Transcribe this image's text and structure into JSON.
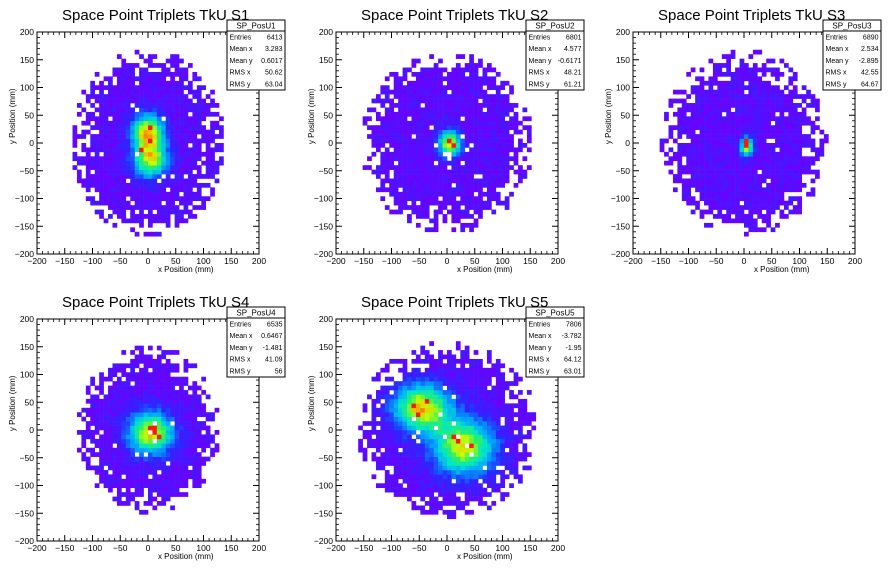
{
  "chart_data": [
    {
      "type": "heatmap",
      "title": "Space Point Triplets TkU S1",
      "xlabel": "x Position (mm)",
      "ylabel": "y Position (mm)",
      "xlim": [
        -200,
        200
      ],
      "ylim": [
        -200,
        200
      ],
      "xticks": [
        -200,
        -150,
        -100,
        -50,
        0,
        50,
        100,
        150,
        200
      ],
      "yticks": [
        -200,
        -150,
        -100,
        -50,
        0,
        50,
        100,
        150,
        200
      ],
      "grid": false,
      "stats": {
        "name": "SP_PosU1",
        "rows": [
          {
            "label": "Entries",
            "value": "6413"
          },
          {
            "label": "Mean x",
            "value": "3.283"
          },
          {
            "label": "Mean y",
            "value": "0.6017"
          },
          {
            "label": "RMS x",
            "value": "50.62"
          },
          {
            "label": "RMS y",
            "value": "63.04"
          }
        ]
      },
      "blobs": [
        {
          "x": 0,
          "y": 20,
          "sx": 20,
          "sy": 22,
          "amp": 1.0
        },
        {
          "x": 5,
          "y": -30,
          "sx": 22,
          "sy": 22,
          "amp": 0.9
        }
      ],
      "extent": {
        "cx": 0,
        "cy": 0,
        "rx": 135,
        "ry": 165
      },
      "hot": [
        [
          0,
          25
        ],
        [
          5,
          5
        ],
        [
          -10,
          -15
        ],
        [
          0,
          30
        ]
      ]
    },
    {
      "type": "heatmap",
      "title": "Space Point Triplets TkU S2",
      "xlabel": "x Position (mm)",
      "ylabel": "y Position (mm)",
      "xlim": [
        -200,
        200
      ],
      "ylim": [
        -200,
        200
      ],
      "xticks": [
        -200,
        -150,
        -100,
        -50,
        0,
        50,
        100,
        150,
        200
      ],
      "yticks": [
        -200,
        -150,
        -100,
        -50,
        0,
        50,
        100,
        150,
        200
      ],
      "grid": false,
      "stats": {
        "name": "SP_PosU2",
        "rows": [
          {
            "label": "Entries",
            "value": "6801"
          },
          {
            "label": "Mean x",
            "value": "4.577"
          },
          {
            "label": "Mean y",
            "value": "-0.6171"
          },
          {
            "label": "RMS x",
            "value": "48.21"
          },
          {
            "label": "RMS y",
            "value": "61.21"
          }
        ]
      },
      "blobs": [
        {
          "x": 5,
          "y": 0,
          "sx": 14,
          "sy": 16,
          "amp": 1.0
        }
      ],
      "extent": {
        "cx": 0,
        "cy": 0,
        "rx": 150,
        "ry": 160
      },
      "hot": [
        [
          5,
          0
        ],
        [
          0,
          5
        ],
        [
          10,
          -5
        ]
      ]
    },
    {
      "type": "heatmap",
      "title": "Space Point Triplets TkU S3",
      "xlabel": "x Position (mm)",
      "ylabel": "y Position (mm)",
      "xlim": [
        -200,
        200
      ],
      "ylim": [
        -200,
        200
      ],
      "xticks": [
        -200,
        -150,
        -100,
        -50,
        0,
        50,
        100,
        150,
        200
      ],
      "yticks": [
        -200,
        -150,
        -100,
        -50,
        0,
        50,
        100,
        150,
        200
      ],
      "grid": false,
      "stats": {
        "name": "SP_PosU3",
        "rows": [
          {
            "label": "Entries",
            "value": "6890"
          },
          {
            "label": "Mean x",
            "value": "2.534"
          },
          {
            "label": "Mean y",
            "value": "-2.895"
          },
          {
            "label": "RMS x",
            "value": "42.55"
          },
          {
            "label": "RMS y",
            "value": "64.67"
          }
        ]
      },
      "blobs": [
        {
          "x": 5,
          "y": -5,
          "sx": 8,
          "sy": 12,
          "amp": 1.0
        }
      ],
      "extent": {
        "cx": 0,
        "cy": 0,
        "rx": 145,
        "ry": 165
      },
      "hot": [
        [
          5,
          -5
        ],
        [
          5,
          0
        ]
      ]
    },
    {
      "type": "heatmap",
      "title": "Space Point Triplets TkU S4",
      "xlabel": "x Position (mm)",
      "ylabel": "y Position (mm)",
      "xlim": [
        -200,
        200
      ],
      "ylim": [
        -200,
        200
      ],
      "xticks": [
        -200,
        -150,
        -100,
        -50,
        0,
        50,
        100,
        150,
        200
      ],
      "yticks": [
        -200,
        -150,
        -100,
        -50,
        0,
        50,
        100,
        150,
        200
      ],
      "grid": false,
      "stats": {
        "name": "SP_PosU4",
        "rows": [
          {
            "label": "Entries",
            "value": "6535"
          },
          {
            "label": "Mean x",
            "value": "0.6467"
          },
          {
            "label": "Mean y",
            "value": "-1.481"
          },
          {
            "label": "RMS x",
            "value": "41.09"
          },
          {
            "label": "RMS y",
            "value": "56"
          }
        ]
      },
      "blobs": [
        {
          "x": 5,
          "y": -5,
          "sx": 28,
          "sy": 26,
          "amp": 1.0
        }
      ],
      "extent": {
        "cx": 0,
        "cy": 0,
        "rx": 125,
        "ry": 150
      },
      "hot": [
        [
          10,
          -5
        ],
        [
          20,
          -10
        ],
        [
          0,
          0
        ],
        [
          15,
          0
        ]
      ]
    },
    {
      "type": "heatmap",
      "title": "Space Point Triplets TkU S5",
      "xlabel": "x Position (mm)",
      "ylabel": "y Position (mm)",
      "xlim": [
        -200,
        200
      ],
      "ylim": [
        -200,
        200
      ],
      "xticks": [
        -200,
        -150,
        -100,
        -50,
        0,
        50,
        100,
        150,
        200
      ],
      "yticks": [
        -200,
        -150,
        -100,
        -50,
        0,
        50,
        100,
        150,
        200
      ],
      "grid": false,
      "stats": {
        "name": "SP_PosU5",
        "rows": [
          {
            "label": "Entries",
            "value": "7806"
          },
          {
            "label": "Mean x",
            "value": "-3.782"
          },
          {
            "label": "Mean y",
            "value": "-1.95"
          },
          {
            "label": "RMS x",
            "value": "64.12"
          },
          {
            "label": "RMS y",
            "value": "63.01"
          }
        ]
      },
      "blobs": [
        {
          "x": -45,
          "y": 40,
          "sx": 35,
          "sy": 30,
          "amp": 1.0
        },
        {
          "x": 30,
          "y": -30,
          "sx": 38,
          "sy": 35,
          "amp": 0.95
        }
      ],
      "extent": {
        "cx": 0,
        "cy": 0,
        "rx": 160,
        "ry": 155
      },
      "hot": [
        [
          -60,
          40
        ],
        [
          -40,
          50
        ],
        [
          20,
          -20
        ],
        [
          40,
          -30
        ],
        [
          10,
          -10
        ],
        [
          -50,
          30
        ]
      ]
    }
  ]
}
